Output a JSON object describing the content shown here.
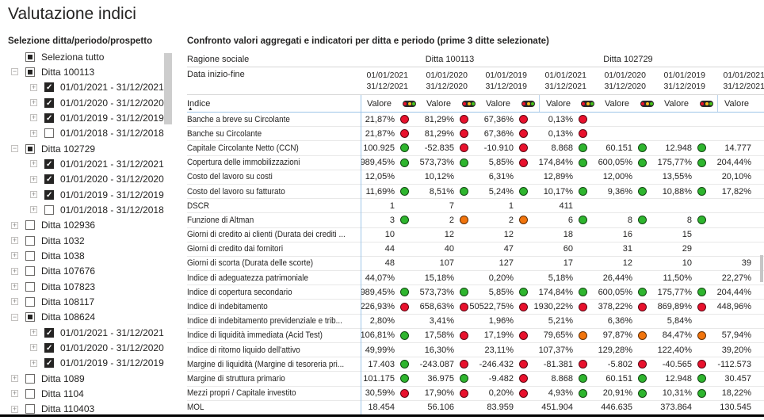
{
  "page": {
    "title": "Valutazione indici"
  },
  "sidebar": {
    "title": "Selezione ditta/periodo/prospetto",
    "items": [
      {
        "label": "Seleziona tutto",
        "level": 0,
        "expander": null,
        "state": "indeterminate"
      },
      {
        "label": "Ditta 100113",
        "level": 0,
        "expander": "minus",
        "state": "indeterminate"
      },
      {
        "label": "01/01/2021 - 31/12/2021",
        "level": 1,
        "expander": "plus",
        "state": "checked"
      },
      {
        "label": "01/01/2020 - 31/12/2020",
        "level": 1,
        "expander": "plus",
        "state": "checked"
      },
      {
        "label": "01/01/2019 - 31/12/2019",
        "level": 1,
        "expander": "plus",
        "state": "checked"
      },
      {
        "label": "01/01/2018 - 31/12/2018",
        "level": 1,
        "expander": "plus",
        "state": "unchecked"
      },
      {
        "label": "Ditta 102729",
        "level": 0,
        "expander": "minus",
        "state": "indeterminate"
      },
      {
        "label": "01/01/2021 - 31/12/2021",
        "level": 1,
        "expander": "plus",
        "state": "checked"
      },
      {
        "label": "01/01/2020 - 31/12/2020",
        "level": 1,
        "expander": "plus",
        "state": "checked"
      },
      {
        "label": "01/01/2019 - 31/12/2019",
        "level": 1,
        "expander": "plus",
        "state": "checked"
      },
      {
        "label": "01/01/2018 - 31/12/2018",
        "level": 1,
        "expander": "plus",
        "state": "unchecked"
      },
      {
        "label": "Ditta 102936",
        "level": 0,
        "expander": "plus",
        "state": "unchecked"
      },
      {
        "label": "Ditta 1032",
        "level": 0,
        "expander": "plus",
        "state": "unchecked"
      },
      {
        "label": "Ditta 1038",
        "level": 0,
        "expander": "plus",
        "state": "unchecked"
      },
      {
        "label": "Ditta 107676",
        "level": 0,
        "expander": "plus",
        "state": "unchecked"
      },
      {
        "label": "Ditta 107823",
        "level": 0,
        "expander": "plus",
        "state": "unchecked"
      },
      {
        "label": "Ditta 108117",
        "level": 0,
        "expander": "plus",
        "state": "unchecked"
      },
      {
        "label": "Ditta 108624",
        "level": 0,
        "expander": "minus",
        "state": "indeterminate"
      },
      {
        "label": "01/01/2021 - 31/12/2021",
        "level": 1,
        "expander": "plus",
        "state": "checked"
      },
      {
        "label": "01/01/2020 - 31/12/2020",
        "level": 1,
        "expander": "plus",
        "state": "checked"
      },
      {
        "label": "01/01/2019 - 31/12/2019",
        "level": 1,
        "expander": "plus",
        "state": "checked"
      },
      {
        "label": "Ditta 1089",
        "level": 0,
        "expander": "plus",
        "state": "unchecked"
      },
      {
        "label": "Ditta 1104",
        "level": 0,
        "expander": "plus",
        "state": "unchecked"
      },
      {
        "label": "Ditta 110403",
        "level": 0,
        "expander": "plus",
        "state": "unchecked"
      }
    ]
  },
  "table": {
    "title": "Confronto valori aggregati e indicatori per ditta e periodo (prime 3 ditte selezionate)",
    "header": {
      "ragione_sociale_label": "Ragione sociale",
      "data_inizio_fine_label": "Data inizio-fine",
      "indice_label": "Indice",
      "sort_icon": "▲",
      "valore_label": "Valore",
      "groups": [
        {
          "label": "Ditta 100113",
          "span": 3
        },
        {
          "label": "Ditta 102729",
          "span": 3
        },
        {
          "label": "",
          "span": 1
        }
      ],
      "periods": [
        {
          "from": "01/01/2021",
          "to": "31/12/2021",
          "traffic_icon": true
        },
        {
          "from": "01/01/2020",
          "to": "31/12/2020",
          "traffic_icon": true
        },
        {
          "from": "01/01/2019",
          "to": "31/12/2019",
          "traffic_icon": true
        },
        {
          "from": "01/01/2021",
          "to": "31/12/2021",
          "traffic_icon": true
        },
        {
          "from": "01/01/2020",
          "to": "31/12/2020",
          "traffic_icon": true
        },
        {
          "from": "01/01/2019",
          "to": "31/12/2019",
          "traffic_icon": true
        },
        {
          "from": "01/01/2021",
          "to": "31/12/2021",
          "traffic_icon": false
        }
      ]
    },
    "rows": [
      {
        "label": "Banche a breve su Circolante",
        "cells": [
          {
            "v": "21,87%",
            "d": "red"
          },
          {
            "v": "81,29%",
            "d": "red"
          },
          {
            "v": "67,36%",
            "d": "red"
          },
          {
            "v": "0,13%",
            "d": "red"
          },
          {
            "v": ""
          },
          {
            "v": ""
          },
          {
            "v": ""
          }
        ]
      },
      {
        "label": "Banche su Circolante",
        "cells": [
          {
            "v": "21,87%",
            "d": "red"
          },
          {
            "v": "81,29%",
            "d": "red"
          },
          {
            "v": "67,36%",
            "d": "red"
          },
          {
            "v": "0,13%",
            "d": "red"
          },
          {
            "v": ""
          },
          {
            "v": ""
          },
          {
            "v": ""
          }
        ]
      },
      {
        "label": "Capitale Circolante Netto (CCN)",
        "cells": [
          {
            "v": "100.925",
            "d": "green"
          },
          {
            "v": "-52.835",
            "d": "red"
          },
          {
            "v": "-10.910",
            "d": "red"
          },
          {
            "v": "8.868",
            "d": "green"
          },
          {
            "v": "60.151",
            "d": "green"
          },
          {
            "v": "12.948",
            "d": "green"
          },
          {
            "v": "14.777"
          }
        ]
      },
      {
        "label": "Copertura delle immobilizzazioni",
        "cells": [
          {
            "v": "989,45%",
            "d": "green"
          },
          {
            "v": "573,73%",
            "d": "green"
          },
          {
            "v": "5,85%",
            "d": "red"
          },
          {
            "v": "174,84%",
            "d": "green"
          },
          {
            "v": "600,05%",
            "d": "green"
          },
          {
            "v": "175,77%",
            "d": "green"
          },
          {
            "v": "204,44%"
          }
        ]
      },
      {
        "label": "Costo del lavoro su costi",
        "cells": [
          {
            "v": "12,05%"
          },
          {
            "v": "10,12%"
          },
          {
            "v": "6,31%"
          },
          {
            "v": "12,89%"
          },
          {
            "v": "12,00%"
          },
          {
            "v": "13,55%"
          },
          {
            "v": "20,10%"
          }
        ]
      },
      {
        "label": "Costo del lavoro su fatturato",
        "cells": [
          {
            "v": "11,69%",
            "d": "green"
          },
          {
            "v": "8,51%",
            "d": "green"
          },
          {
            "v": "5,24%",
            "d": "green"
          },
          {
            "v": "10,17%",
            "d": "green"
          },
          {
            "v": "9,36%",
            "d": "green"
          },
          {
            "v": "10,88%",
            "d": "green"
          },
          {
            "v": "17,82%"
          }
        ]
      },
      {
        "label": "DSCR",
        "cells": [
          {
            "v": "1"
          },
          {
            "v": "7"
          },
          {
            "v": "1"
          },
          {
            "v": "411"
          },
          {
            "v": ""
          },
          {
            "v": ""
          },
          {
            "v": ""
          }
        ]
      },
      {
        "label": "Funzione di Altman",
        "cells": [
          {
            "v": "3",
            "d": "green"
          },
          {
            "v": "2",
            "d": "orange"
          },
          {
            "v": "2",
            "d": "orange"
          },
          {
            "v": "6",
            "d": "green"
          },
          {
            "v": "8",
            "d": "green"
          },
          {
            "v": "8",
            "d": "green"
          },
          {
            "v": ""
          }
        ]
      },
      {
        "label": "Giorni di credito ai clienti (Durata dei crediti ...",
        "cells": [
          {
            "v": "10"
          },
          {
            "v": "12"
          },
          {
            "v": "12"
          },
          {
            "v": "18"
          },
          {
            "v": "16"
          },
          {
            "v": "15"
          },
          {
            "v": ""
          }
        ]
      },
      {
        "label": "Giorni di credito dai fornitori",
        "cells": [
          {
            "v": "44"
          },
          {
            "v": "40"
          },
          {
            "v": "47"
          },
          {
            "v": "60"
          },
          {
            "v": "31"
          },
          {
            "v": "29"
          },
          {
            "v": ""
          }
        ]
      },
      {
        "label": "Giorni di scorta (Durata delle scorte)",
        "cells": [
          {
            "v": "48"
          },
          {
            "v": "107"
          },
          {
            "v": "127"
          },
          {
            "v": "17"
          },
          {
            "v": "12"
          },
          {
            "v": "10"
          },
          {
            "v": "39"
          }
        ]
      },
      {
        "label": "Indice di adeguatezza patrimoniale",
        "cells": [
          {
            "v": "44,07%"
          },
          {
            "v": "15,18%"
          },
          {
            "v": "0,20%"
          },
          {
            "v": "5,18%"
          },
          {
            "v": "26,44%"
          },
          {
            "v": "11,50%"
          },
          {
            "v": "22,27%"
          }
        ]
      },
      {
        "label": "Indice di copertura secondario",
        "cells": [
          {
            "v": "989,45%",
            "d": "green"
          },
          {
            "v": "573,73%",
            "d": "green"
          },
          {
            "v": "5,85%",
            "d": "green"
          },
          {
            "v": "174,84%",
            "d": "green"
          },
          {
            "v": "600,05%",
            "d": "green"
          },
          {
            "v": "175,77%",
            "d": "green"
          },
          {
            "v": "204,44%"
          }
        ]
      },
      {
        "label": "Indice di indebitamento",
        "cells": [
          {
            "v": "226,93%",
            "d": "red"
          },
          {
            "v": "658,63%",
            "d": "red"
          },
          {
            "v": "50522,75%",
            "d": "red"
          },
          {
            "v": "1930,22%",
            "d": "red"
          },
          {
            "v": "378,22%",
            "d": "red"
          },
          {
            "v": "869,89%",
            "d": "red"
          },
          {
            "v": "448,96%"
          }
        ]
      },
      {
        "label": "Indice di indebitamento previdenziale e trib...",
        "cells": [
          {
            "v": "2,80%"
          },
          {
            "v": "3,41%"
          },
          {
            "v": "1,96%"
          },
          {
            "v": "5,21%"
          },
          {
            "v": "6,36%"
          },
          {
            "v": "5,84%"
          },
          {
            "v": ""
          }
        ]
      },
      {
        "label": "Indice di liquidità immediata (Acid Test)",
        "cells": [
          {
            "v": "106,81%",
            "d": "green"
          },
          {
            "v": "17,58%",
            "d": "red"
          },
          {
            "v": "17,19%",
            "d": "red"
          },
          {
            "v": "79,65%",
            "d": "orange"
          },
          {
            "v": "97,87%",
            "d": "orange"
          },
          {
            "v": "84,47%",
            "d": "orange"
          },
          {
            "v": "57,94%"
          }
        ]
      },
      {
        "label": "Indice di ritorno liquido dell'attivo",
        "cells": [
          {
            "v": "49,99%"
          },
          {
            "v": "16,30%"
          },
          {
            "v": "23,11%"
          },
          {
            "v": "107,37%"
          },
          {
            "v": "129,28%"
          },
          {
            "v": "122,40%"
          },
          {
            "v": "39,20%"
          }
        ]
      },
      {
        "label": "Margine di liquidità (Margine di tesoreria pri...",
        "cells": [
          {
            "v": "17.403",
            "d": "green"
          },
          {
            "v": "-243.087",
            "d": "red"
          },
          {
            "v": "-246.432",
            "d": "red"
          },
          {
            "v": "-81.381",
            "d": "red"
          },
          {
            "v": "-5.802",
            "d": "red"
          },
          {
            "v": "-40.565",
            "d": "red"
          },
          {
            "v": "-112.573"
          }
        ]
      },
      {
        "label": "Margine di struttura primario",
        "cells": [
          {
            "v": "101.175",
            "d": "green"
          },
          {
            "v": "36.975",
            "d": "green"
          },
          {
            "v": "-9.482",
            "d": "red"
          },
          {
            "v": "8.868",
            "d": "green"
          },
          {
            "v": "60.151",
            "d": "green"
          },
          {
            "v": "12.948",
            "d": "green"
          },
          {
            "v": "30.457"
          }
        ]
      },
      {
        "label": "Mezzi propri / Capitale investito",
        "cells": [
          {
            "v": "30,59%",
            "d": "red"
          },
          {
            "v": "17,90%",
            "d": "red"
          },
          {
            "v": "0,20%",
            "d": "red"
          },
          {
            "v": "4,93%",
            "d": "green"
          },
          {
            "v": "20,91%",
            "d": "green"
          },
          {
            "v": "10,31%",
            "d": "green"
          },
          {
            "v": "18,22%"
          }
        ]
      },
      {
        "label": "MOL",
        "cells": [
          {
            "v": "18.454"
          },
          {
            "v": "56.106"
          },
          {
            "v": "83.959"
          },
          {
            "v": "451.904"
          },
          {
            "v": "446.635"
          },
          {
            "v": "373.864"
          },
          {
            "v": "130.545"
          }
        ]
      }
    ]
  },
  "colors": {
    "dot_red": "#e8112d",
    "dot_green": "#2eb52e",
    "dot_orange": "#f1740c",
    "traffic_red": "#e8112d",
    "traffic_yellow": "#fbbd1d",
    "traffic_green": "#47c21b",
    "accent_blue": "#9ec5e8"
  }
}
